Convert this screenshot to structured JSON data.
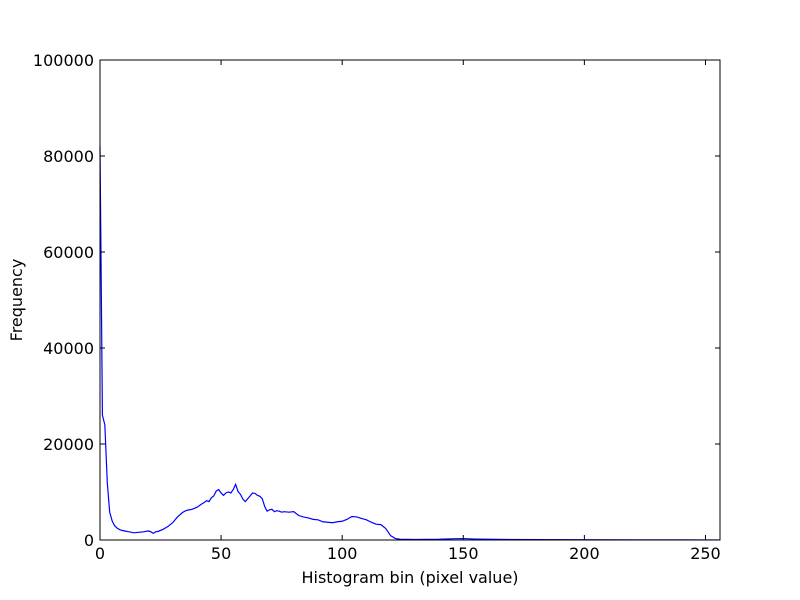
{
  "chart_data": {
    "type": "line",
    "title": "",
    "xlabel": "Histogram bin (pixel value)",
    "ylabel": "Frequency",
    "xlim": [
      0,
      256
    ],
    "ylim": [
      0,
      100000
    ],
    "grid": false,
    "line_color": "#0000ff",
    "x_ticks": [
      {
        "value": 0,
        "label": "0"
      },
      {
        "value": 50,
        "label": "50"
      },
      {
        "value": 100,
        "label": "100"
      },
      {
        "value": 150,
        "label": "150"
      },
      {
        "value": 200,
        "label": "200"
      },
      {
        "value": 250,
        "label": "250"
      }
    ],
    "y_ticks": [
      {
        "value": 0,
        "label": "0"
      },
      {
        "value": 20000,
        "label": "20000"
      },
      {
        "value": 40000,
        "label": "40000"
      },
      {
        "value": 60000,
        "label": "60000"
      },
      {
        "value": 80000,
        "label": "80000"
      },
      {
        "value": 100000,
        "label": "100000"
      }
    ],
    "series": [
      {
        "x": [
          0,
          1,
          2,
          3,
          4,
          5,
          6,
          7,
          8,
          9,
          10,
          12,
          14,
          16,
          18,
          20,
          21,
          22,
          23,
          24,
          26,
          28,
          30,
          32,
          34,
          35,
          36,
          38,
          40,
          42,
          43,
          44,
          45,
          46,
          47,
          48,
          49,
          50,
          51,
          52,
          53,
          54,
          55,
          56,
          57,
          58,
          59,
          60,
          61,
          62,
          63,
          64,
          65,
          66,
          67,
          68,
          69,
          70,
          71,
          72,
          73,
          74,
          75,
          76,
          78,
          80,
          82,
          84,
          86,
          88,
          90,
          92,
          94,
          96,
          98,
          100,
          102,
          104,
          106,
          108,
          110,
          112,
          114,
          116,
          118,
          120,
          122,
          124,
          130,
          140,
          145,
          150,
          155,
          160,
          170,
          180,
          200,
          220,
          240,
          256
        ],
        "y": [
          82000,
          26000,
          24000,
          12000,
          5800,
          4000,
          3000,
          2500,
          2200,
          2000,
          1900,
          1700,
          1500,
          1600,
          1700,
          1900,
          1700,
          1400,
          1700,
          1800,
          2200,
          2800,
          3600,
          4800,
          5700,
          6000,
          6200,
          6400,
          6800,
          7500,
          7800,
          8200,
          8000,
          8800,
          9200,
          10200,
          10500,
          9800,
          9300,
          9800,
          10000,
          9800,
          10500,
          11600,
          10100,
          9500,
          8500,
          8000,
          8600,
          9200,
          9800,
          9700,
          9300,
          9100,
          8600,
          7000,
          6000,
          6300,
          6400,
          5900,
          6100,
          6000,
          5800,
          5900,
          5800,
          5900,
          5100,
          4800,
          4600,
          4300,
          4200,
          3800,
          3700,
          3600,
          3800,
          3900,
          4300,
          4900,
          4800,
          4500,
          4200,
          3700,
          3300,
          3200,
          2400,
          900,
          300,
          150,
          100,
          150,
          250,
          300,
          200,
          150,
          100,
          80,
          50,
          30,
          20,
          10
        ]
      }
    ]
  }
}
